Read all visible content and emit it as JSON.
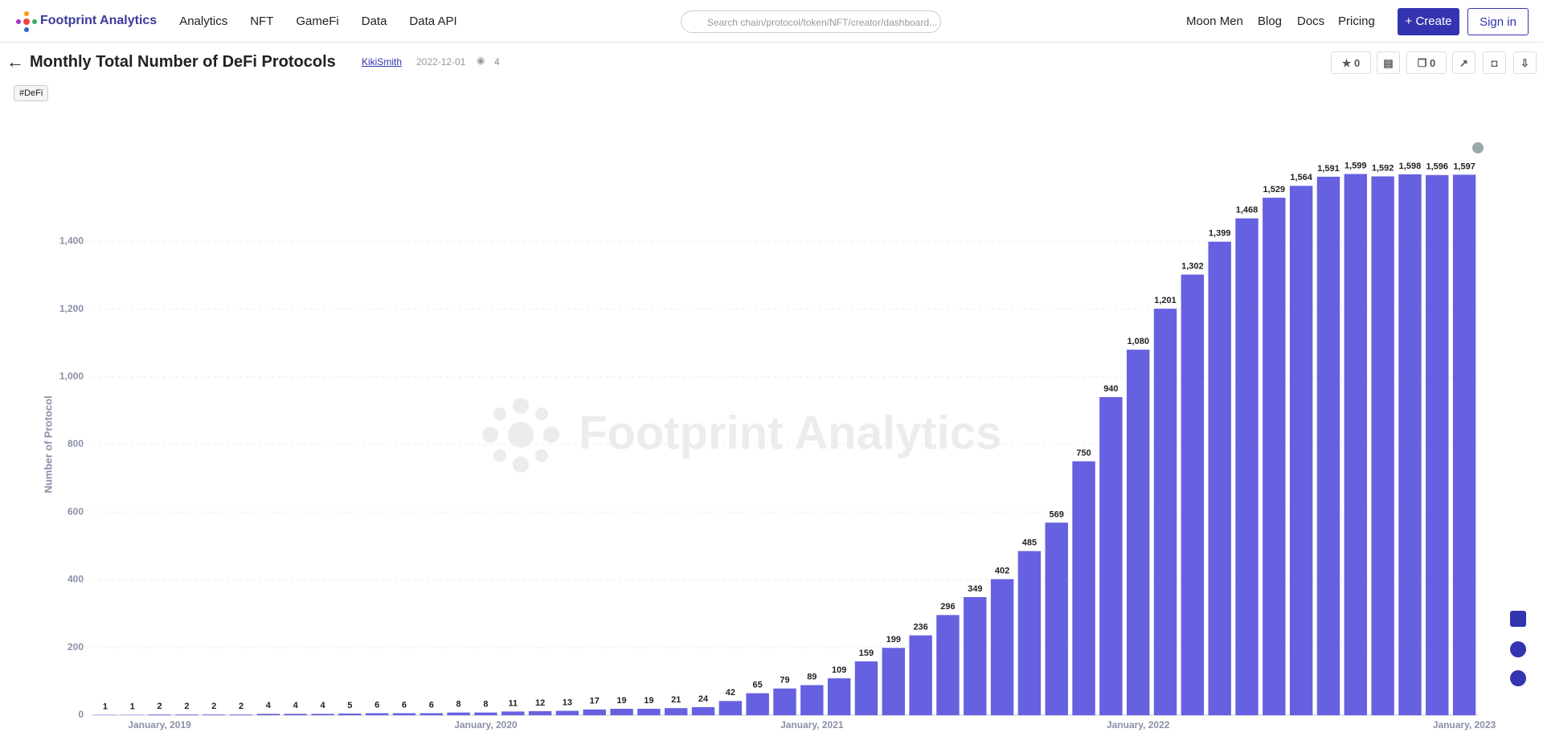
{
  "header": {
    "brand": "Footprint Analytics",
    "nav": [
      "Analytics",
      "NFT",
      "GameFi",
      "Data",
      "Data API"
    ],
    "search_placeholder": "Search chain/protocol/token/NFT/creator/dashboard...",
    "links": [
      "Moon Men",
      "Blog",
      "Docs",
      "Pricing"
    ],
    "create": "+ Create",
    "signin": "Sign in"
  },
  "page": {
    "title": "Monthly Total Number of DeFi Protocols",
    "author": "KikiSmith",
    "date": "2022-12-01",
    "views": "4",
    "tag": "#DeFi",
    "star_count": "0",
    "copy_count": "0"
  },
  "chart_data": {
    "type": "bar",
    "watermark": "Footprint Analytics",
    "y_label": "Number of Protocol",
    "color": "#6561e0",
    "categories": [
      null,
      null,
      "January, 2019",
      null,
      null,
      null,
      null,
      null,
      null,
      null,
      null,
      null,
      null,
      null,
      "January, 2020",
      null,
      null,
      null,
      null,
      null,
      null,
      null,
      null,
      null,
      null,
      null,
      "January, 2021",
      null,
      null,
      null,
      null,
      null,
      null,
      null,
      null,
      null,
      null,
      null,
      "January, 2022",
      null,
      null,
      null,
      null,
      null,
      null,
      null,
      null,
      null,
      null,
      null,
      "January, 2023"
    ],
    "values": [
      1,
      1,
      2,
      2,
      2,
      2,
      4,
      4,
      4,
      5,
      6,
      6,
      6,
      8,
      8,
      11,
      12,
      13,
      17,
      19,
      19,
      21,
      24,
      42,
      65,
      79,
      89,
      109,
      159,
      199,
      236,
      296,
      349,
      402,
      485,
      569,
      750,
      940,
      1080,
      1201,
      1302,
      1399,
      1468,
      1529,
      1564,
      1591,
      1599,
      1592,
      1598,
      1596,
      1597
    ],
    "value_labels": [
      "1",
      "1",
      "2",
      "2",
      "2",
      "2",
      "4",
      "4",
      "4",
      "5",
      "6",
      "6",
      "6",
      "8",
      "8",
      "11",
      "12",
      "13",
      "17",
      "19",
      "19",
      "21",
      "24",
      "42",
      "65",
      "79",
      "89",
      "109",
      "159",
      "199",
      "236",
      "296",
      "349",
      "402",
      "485",
      "569",
      "750",
      "940",
      "1,080",
      "1,201",
      "1,302",
      "1,399",
      "1,468",
      "1,529",
      "1,564",
      "1,591",
      "1,599",
      "1,592",
      "1,598",
      "1,596",
      "1,597"
    ],
    "ylim": [
      0,
      1700
    ],
    "yticks": [
      0,
      200,
      400,
      600,
      800,
      {
        "value": 1000,
        "label": "1,000"
      },
      {
        "value": 1200,
        "label": "1,200"
      },
      {
        "value": 1400,
        "label": "1,400"
      }
    ],
    "grid": true
  }
}
